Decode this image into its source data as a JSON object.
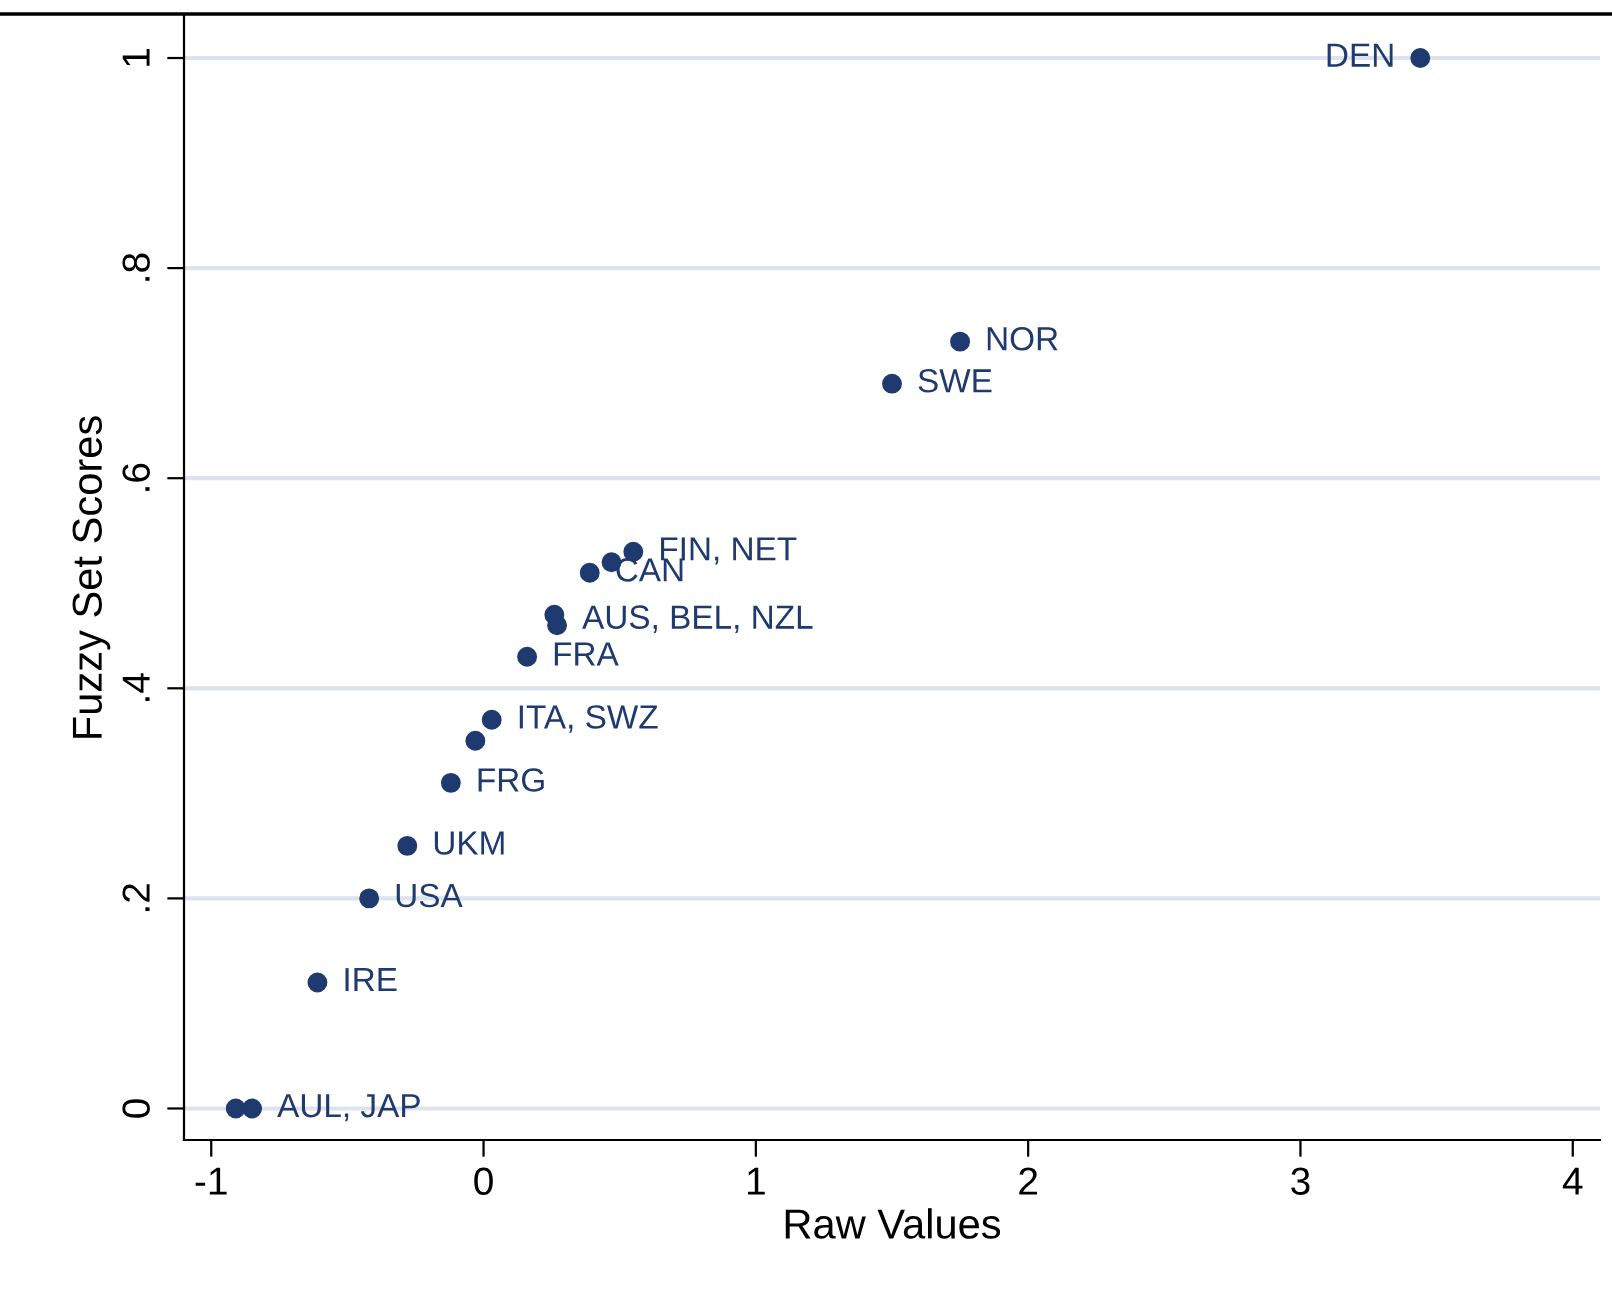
{
  "chart_data": {
    "type": "scatter",
    "xlabel": "Raw Values",
    "ylabel": "Fuzzy Set Scores",
    "x": [
      3.44,
      1.75,
      1.5,
      0.55,
      0.47,
      0.39,
      0.26,
      0.27,
      0.16,
      0.03,
      -0.03,
      -0.12,
      -0.28,
      -0.42,
      -0.61,
      -0.91,
      -0.85
    ],
    "values": [
      1.0,
      0.73,
      0.69,
      0.53,
      0.52,
      0.51,
      0.47,
      0.46,
      0.43,
      0.37,
      0.35,
      0.31,
      0.25,
      0.2,
      0.12,
      0.0,
      0.0
    ],
    "color": "#1f3a6e",
    "marker": "circle",
    "grid": "y",
    "legend": false,
    "xlim": [
      -1.1,
      4.1
    ],
    "xticks": [
      -1,
      0,
      1,
      2,
      3,
      4
    ],
    "ylim": [
      -0.03,
      1.04
    ],
    "yticks": [
      0,
      {
        "value": 0.2,
        "label": ".2"
      },
      {
        "value": 0.4,
        "label": ".4"
      },
      {
        "value": 0.6,
        "label": ".6"
      },
      {
        "value": 0.8,
        "label": ".8"
      },
      1
    ],
    "annotations": [
      {
        "text": "DEN",
        "x": 3.44,
        "y": 1.0
      },
      {
        "text": "NOR",
        "x": 1.75,
        "y": 0.73
      },
      {
        "text": "SWE",
        "x": 1.5,
        "y": 0.69
      },
      {
        "text": "FIN, NET",
        "x": 0.55,
        "y": 0.53
      },
      {
        "text": "CAN",
        "x": 0.39,
        "y": 0.51
      },
      {
        "text": "AUS, BEL, NZL",
        "x": 0.27,
        "y": 0.465
      },
      {
        "text": "FRA",
        "x": 0.16,
        "y": 0.43
      },
      {
        "text": "ITA, SWZ",
        "x": 0.03,
        "y": 0.37
      },
      {
        "text": "FRG",
        "x": -0.12,
        "y": 0.31
      },
      {
        "text": "UKM",
        "x": -0.28,
        "y": 0.25
      },
      {
        "text": "USA",
        "x": -0.42,
        "y": 0.2
      },
      {
        "text": "IRE",
        "x": -0.61,
        "y": 0.12
      },
      {
        "text": "AUL, JAP",
        "x": -0.85,
        "y": 0.0
      }
    ]
  }
}
